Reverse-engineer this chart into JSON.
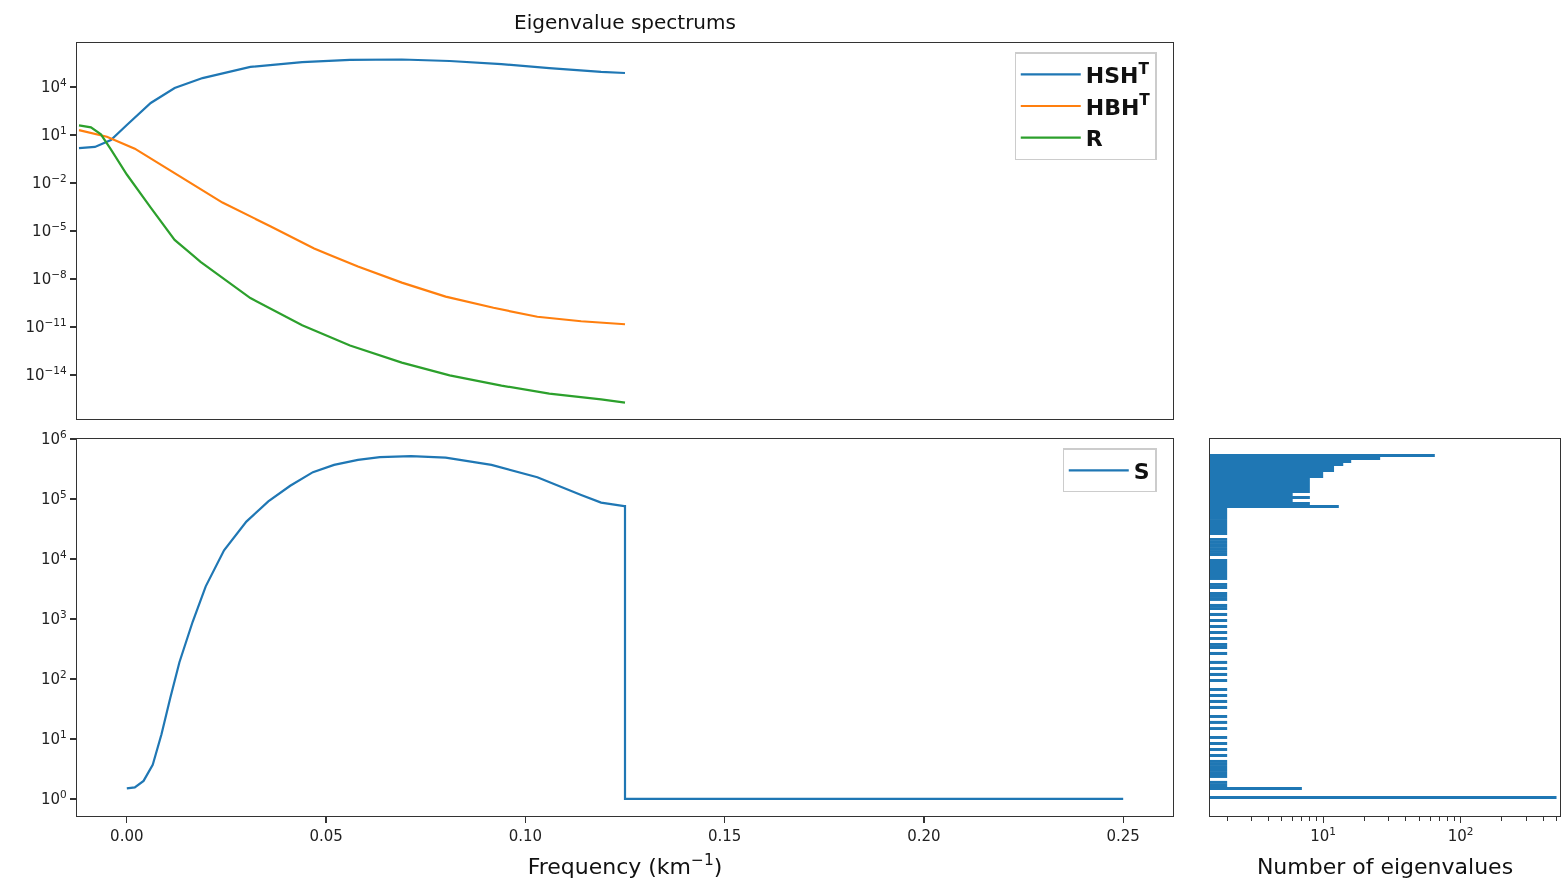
{
  "chart_data": [
    {
      "type": "line",
      "title": "Eigenvalue spectrums",
      "log": true,
      "legend": "top right",
      "tick_labels": "y",
      "xlim": [
        -0.0125,
        0.2625
      ],
      "ylim": [
        1.8e-17,
        5600000.0
      ],
      "yticks": [
        {
          "value": 1e-14,
          "label": "10$^{−14}$"
        },
        {
          "value": 1e-11,
          "label": "10$^{−11}$"
        },
        {
          "value": 1e-08,
          "label": "10$^{−8}$"
        },
        {
          "value": 1e-05,
          "label": "10$^{−5}$"
        },
        {
          "value": 0.01,
          "label": "10$^{−2}$"
        },
        {
          "value": 10,
          "label": "10$^{1}$"
        },
        {
          "value": 10000,
          "label": "10$^{4}$"
        }
      ],
      "series": [
        {
          "name": "HSH$^{T}$",
          "color": "#1f77b4",
          "x": [
            -0.012,
            -0.008,
            -0.004,
            0,
            0.006,
            0.012,
            0.019,
            0.031,
            0.044,
            0.056,
            0.069,
            0.081,
            0.094,
            0.106,
            0.119,
            0.125
          ],
          "values": [
            1.5,
            1.8,
            4.9,
            42,
            1000,
            8700,
            36000,
            180000,
            360000,
            490000,
            520000,
            420000,
            270000,
            150000,
            87000,
            75000
          ]
        },
        {
          "name": "HBH$^{T}$",
          "color": "#ff7f0e",
          "x": [
            -0.012,
            -0.005,
            0.002,
            0.013,
            0.024,
            0.036,
            0.047,
            0.058,
            0.069,
            0.08,
            0.092,
            0.103,
            0.114,
            0.125
          ],
          "values": [
            20,
            7.8,
            1.4,
            0.029,
            0.0006,
            2e-05,
            8e-07,
            6e-08,
            6e-09,
            8e-10,
            1.6e-10,
            4.4e-11,
            2.3e-11,
            1.5e-11
          ]
        },
        {
          "name": "R",
          "color": "#2ca02c",
          "x": [
            -0.012,
            -0.009,
            -0.0065,
            -0.004,
            0,
            0.006,
            0.012,
            0.0185,
            0.031,
            0.044,
            0.056,
            0.069,
            0.081,
            0.094,
            0.106,
            0.119,
            0.125
          ],
          "values": [
            40,
            30,
            11,
            1.26,
            0.034,
            0.00029,
            2.8e-06,
            1.2e-07,
            6.5e-10,
            1.3e-11,
            7e-13,
            6e-14,
            9.5e-15,
            2.2e-15,
            7e-16,
            3e-16,
            1.9e-16
          ]
        }
      ]
    },
    {
      "type": "line",
      "xlabel": "Frequency (km$^{−1}$)",
      "log": true,
      "legend": "top right",
      "xlim": [
        -0.0125,
        0.2625
      ],
      "ylim": [
        0.52,
        1000000
      ],
      "xticks": [
        {
          "value": 0,
          "label": "0.00"
        },
        {
          "value": 0.05,
          "label": "0.05"
        },
        {
          "value": 0.1,
          "label": "0.10"
        },
        {
          "value": 0.15,
          "label": "0.15"
        },
        {
          "value": 0.2,
          "label": "0.20"
        },
        {
          "value": 0.25,
          "label": "0.25"
        }
      ],
      "yticks": [
        {
          "value": 1,
          "label": "10$^{0}$"
        },
        {
          "value": 10,
          "label": "10$^{1}$"
        },
        {
          "value": 100,
          "label": "10$^{2}$"
        },
        {
          "value": 1000,
          "label": "10$^{3}$"
        },
        {
          "value": 10000,
          "label": "10$^{4}$"
        },
        {
          "value": 100000,
          "label": "10$^{5}$"
        },
        {
          "value": 1000000,
          "label": "10$^{6}$"
        }
      ],
      "series": [
        {
          "name": "S",
          "color": "#1f77b4",
          "x": [
            0,
            0.002,
            0.0042,
            0.0065,
            0.0087,
            0.0109,
            0.0132,
            0.0165,
            0.0198,
            0.0244,
            0.03,
            0.0355,
            0.041,
            0.0467,
            0.052,
            0.058,
            0.0635,
            0.0713,
            0.08,
            0.0915,
            0.103,
            0.114,
            0.119,
            0.1248,
            0.125,
            0.125,
            0.25
          ],
          "values": [
            1.5,
            1.56,
            2,
            3.7,
            12,
            48,
            190,
            890,
            3500,
            14000,
            42000,
            91000,
            166000,
            280000,
            370000,
            450000,
            500000,
            520000,
            490000,
            370000,
            230000,
            117000,
            87000,
            76000,
            76000,
            1,
            1
          ]
        }
      ]
    },
    {
      "type": "histogram",
      "orientation": "horizontal",
      "xlabel": "Number of eigenvalues",
      "log": "xy",
      "tick_labels": "x",
      "color": "#1f77b4",
      "xlim": [
        1.5,
        530
      ],
      "ylim": [
        0.52,
        1000000
      ],
      "xticks": [
        {
          "value": 2,
          "label": null
        },
        {
          "value": 3,
          "label": null
        },
        {
          "value": 4,
          "label": null
        },
        {
          "value": 5,
          "label": null
        },
        {
          "value": 6,
          "label": null
        },
        {
          "value": 7,
          "label": null
        },
        {
          "value": 8,
          "label": null
        },
        {
          "value": 9,
          "label": null
        },
        {
          "value": 10,
          "label": "10$^{1}$"
        },
        {
          "value": 20,
          "label": null
        },
        {
          "value": 30,
          "label": null
        },
        {
          "value": 40,
          "label": null
        },
        {
          "value": 50,
          "label": null
        },
        {
          "value": 60,
          "label": null
        },
        {
          "value": 70,
          "label": null
        },
        {
          "value": 80,
          "label": null
        },
        {
          "value": 90,
          "label": null
        },
        {
          "value": 100,
          "label": "10$^{2}$"
        },
        {
          "value": 200,
          "label": null
        },
        {
          "value": 300,
          "label": null
        },
        {
          "value": 400,
          "label": null
        },
        {
          "value": 500,
          "label": null
        }
      ],
      "bins": [
        1,
        1.12,
        1.41,
        1.58,
        1.78,
        2,
        2.24,
        2.51,
        2.82,
        3.16,
        3.55,
        3.98,
        4.47,
        5.01,
        5.62,
        6.31,
        7.08,
        7.94,
        8.91,
        10,
        11.2,
        14.1,
        15.8,
        17.8,
        20,
        22.4,
        25.1,
        31.6,
        35.5,
        39.8,
        44.7,
        50.1,
        56.2,
        63.1,
        70.8,
        89.1,
        100,
        112,
        126,
        141,
        158,
        178,
        200,
        251,
        282,
        316,
        355,
        398,
        447,
        501,
        562,
        631,
        708,
        794,
        891,
        1000,
        1120,
        1260,
        1410,
        1580,
        1780,
        2000,
        2240,
        2510,
        2820,
        3160,
        3550,
        3980,
        4470,
        5010,
        5620,
        6310,
        7080,
        7940,
        8910,
        10000,
        11200,
        12600,
        14100,
        15800,
        17800,
        20000,
        22400,
        25100,
        28200,
        31600,
        35500,
        39800,
        44700,
        50100,
        56200,
        63100,
        70800,
        79400,
        89100,
        100000,
        112000,
        126000,
        141000,
        158000,
        178000,
        200000,
        224000,
        251000,
        282000,
        316000,
        355000,
        398000,
        447000,
        501000,
        562000
      ],
      "values": [
        500,
        null,
        7,
        2,
        2,
        null,
        2,
        2,
        2,
        2,
        2,
        2,
        null,
        2,
        null,
        2,
        null,
        2,
        null,
        2,
        null,
        2,
        null,
        2,
        null,
        2,
        null,
        2,
        null,
        2,
        null,
        2,
        null,
        2,
        null,
        2,
        null,
        2,
        null,
        2,
        null,
        2,
        null,
        2,
        null,
        2,
        2,
        null,
        2,
        null,
        2,
        null,
        2,
        null,
        2,
        null,
        2,
        null,
        2,
        2,
        null,
        2,
        2,
        2,
        null,
        2,
        2,
        null,
        2,
        2,
        2,
        2,
        2,
        2,
        2,
        null,
        2,
        2,
        2,
        2,
        2,
        2,
        null,
        2,
        2,
        2,
        2,
        2,
        2,
        2,
        2,
        2,
        13,
        8,
        6,
        8,
        6,
        8,
        8,
        8,
        8,
        8,
        10,
        10,
        12,
        12,
        14,
        16,
        26,
        65
      ]
    }
  ]
}
